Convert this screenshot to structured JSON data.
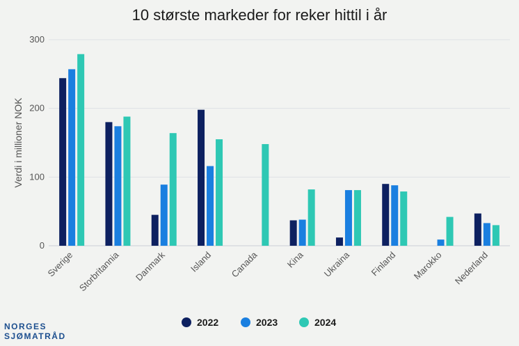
{
  "chart_data": {
    "type": "bar",
    "title": "10 største markeder for reker hittil i år",
    "ylabel": "Verdi i millioner NOK",
    "xlabel": "",
    "ylim": [
      0,
      300
    ],
    "yticks": [
      0,
      100,
      200,
      300
    ],
    "grid": true,
    "legend_position": "bottom",
    "categories": [
      "Sverige",
      "Storbritannia",
      "Danmark",
      "Island",
      "Canada",
      "Kina",
      "Ukraina",
      "Finland",
      "Marokko",
      "Nederland"
    ],
    "series": [
      {
        "name": "2022",
        "color": "#0d2060",
        "values": [
          244,
          180,
          45,
          198,
          0,
          37,
          12,
          90,
          0,
          47
        ]
      },
      {
        "name": "2023",
        "color": "#1a7fe0",
        "values": [
          257,
          174,
          89,
          116,
          0,
          38,
          81,
          88,
          9,
          33
        ]
      },
      {
        "name": "2024",
        "color": "#2ec8b4",
        "values": [
          279,
          188,
          164,
          155,
          148,
          82,
          81,
          79,
          42,
          30
        ]
      }
    ]
  },
  "logo": {
    "line1": "NORGES",
    "line2": "SJØMATRÅD",
    "color": "#1d4f8f"
  }
}
